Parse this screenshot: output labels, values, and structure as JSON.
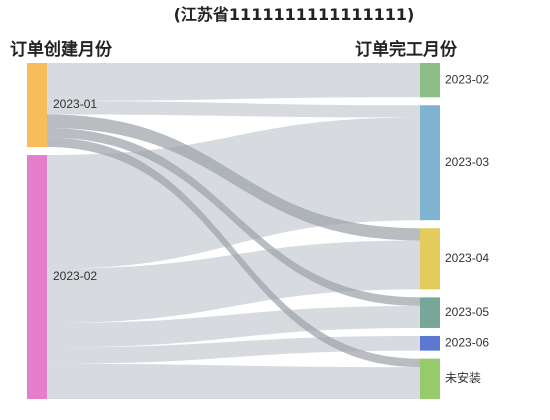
{
  "chart_data": {
    "type": "sankey",
    "title": "(江苏省1111111111111111)",
    "left_header": "订单创建月份",
    "right_header": "订单完工月份",
    "link_color": "#bfc4c9",
    "sources": [
      {
        "name": "2023-01",
        "color": "#f6bd5a"
      },
      {
        "name": "2023-02",
        "color": "#e67fcb"
      }
    ],
    "targets": [
      {
        "name": "2023-02",
        "color": "#8bbd84"
      },
      {
        "name": "2023-03",
        "color": "#7fb3d0"
      },
      {
        "name": "2023-04",
        "color": "#e3cb5c"
      },
      {
        "name": "2023-05",
        "color": "#78a79a"
      },
      {
        "name": "2023-06",
        "color": "#5b78d1"
      },
      {
        "name": "未安装",
        "color": "#96ca6c"
      }
    ],
    "links": [
      {
        "source": "2023-01",
        "target": "2023-02",
        "value": 28,
        "highlight": false
      },
      {
        "source": "2023-01",
        "target": "2023-03",
        "value": 10,
        "highlight": false
      },
      {
        "source": "2023-01",
        "target": "2023-04",
        "value": 10,
        "highlight": true
      },
      {
        "source": "2023-01",
        "target": "2023-05",
        "value": 7,
        "highlight": true
      },
      {
        "source": "2023-01",
        "target": "未安装",
        "value": 7,
        "highlight": true
      },
      {
        "source": "2023-02",
        "target": "2023-03",
        "value": 84,
        "highlight": false
      },
      {
        "source": "2023-02",
        "target": "2023-04",
        "value": 40,
        "highlight": false
      },
      {
        "source": "2023-02",
        "target": "2023-05",
        "value": 18,
        "highlight": false
      },
      {
        "source": "2023-02",
        "target": "2023-06",
        "value": 12,
        "highlight": false
      },
      {
        "source": "2023-02",
        "target": "未安装",
        "value": 26,
        "highlight": false
      }
    ]
  }
}
